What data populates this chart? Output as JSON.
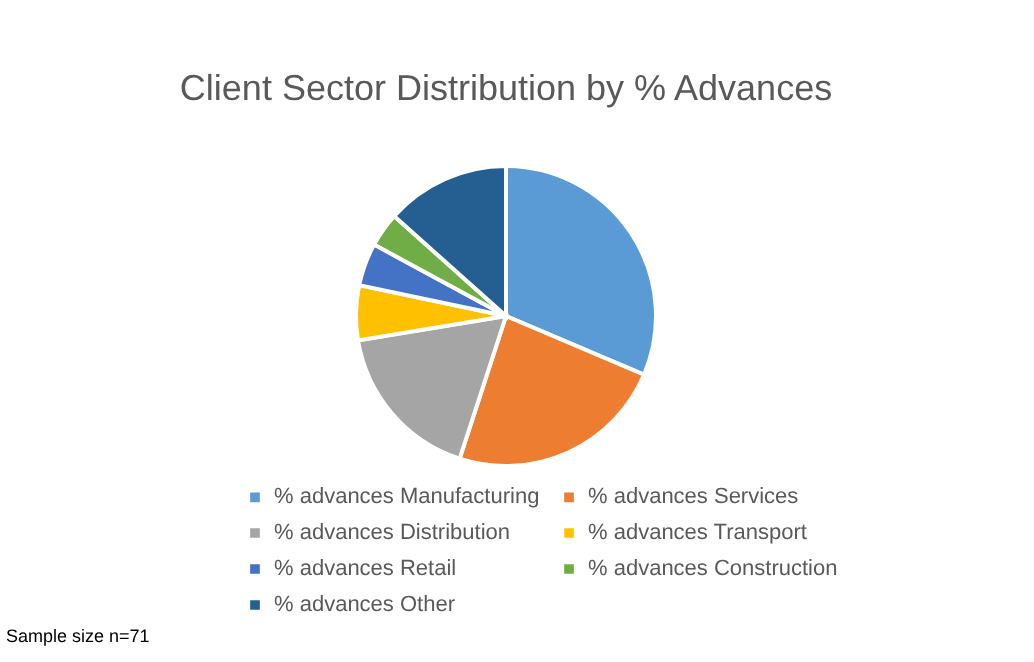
{
  "chart_data": {
    "type": "pie",
    "title": "Client Sector Distribution by % Advances",
    "categories": [
      "% advances Manufacturing",
      "% advances Services",
      "% advances Distribution",
      "% advances Transport",
      "% advances Retail",
      "% advances Construction",
      "% advances Other"
    ],
    "values": [
      31.4,
      23.6,
      17.4,
      5.9,
      4.6,
      3.7,
      13.4
    ],
    "colors": [
      "#5b9bd5",
      "#ed7d31",
      "#a5a5a5",
      "#ffc000",
      "#4472c4",
      "#70ad47",
      "#255e91"
    ],
    "legend": "bottom",
    "annotations": [
      "Sample size n=71"
    ]
  }
}
